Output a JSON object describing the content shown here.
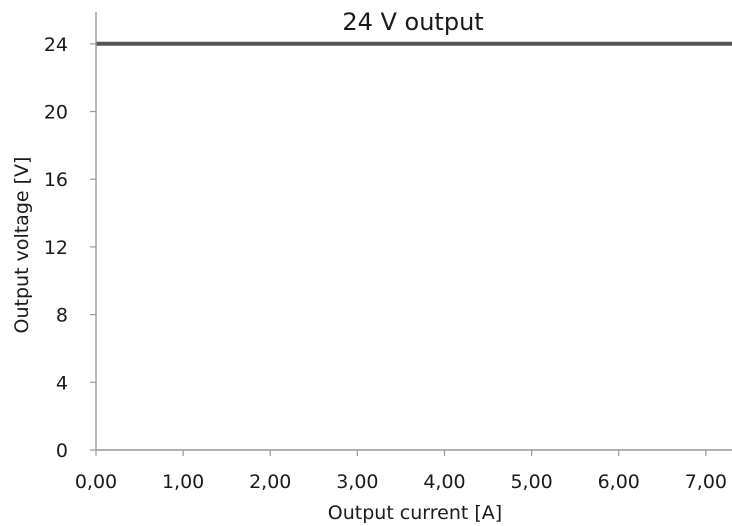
{
  "chart_data": {
    "type": "line",
    "title": "24 V output",
    "xlabel": "Output current [A]",
    "ylabel": "Output voltage [V]",
    "xlim": [
      0,
      7.3
    ],
    "ylim": [
      0,
      26
    ],
    "x_ticks": [
      0,
      1,
      2,
      3,
      4,
      5,
      6,
      7
    ],
    "x_tick_labels": [
      "0,00",
      "1,00",
      "2,00",
      "3,00",
      "4,00",
      "5,00",
      "6,00",
      "7,00"
    ],
    "y_ticks": [
      0,
      4,
      8,
      12,
      16,
      20,
      24
    ],
    "y_tick_labels": [
      "0",
      "4",
      "8",
      "12",
      "16",
      "20",
      "24"
    ],
    "grid": false,
    "series": [
      {
        "x": [
          0,
          7.3
        ],
        "y": [
          24,
          24
        ],
        "color": "#555555"
      }
    ]
  }
}
